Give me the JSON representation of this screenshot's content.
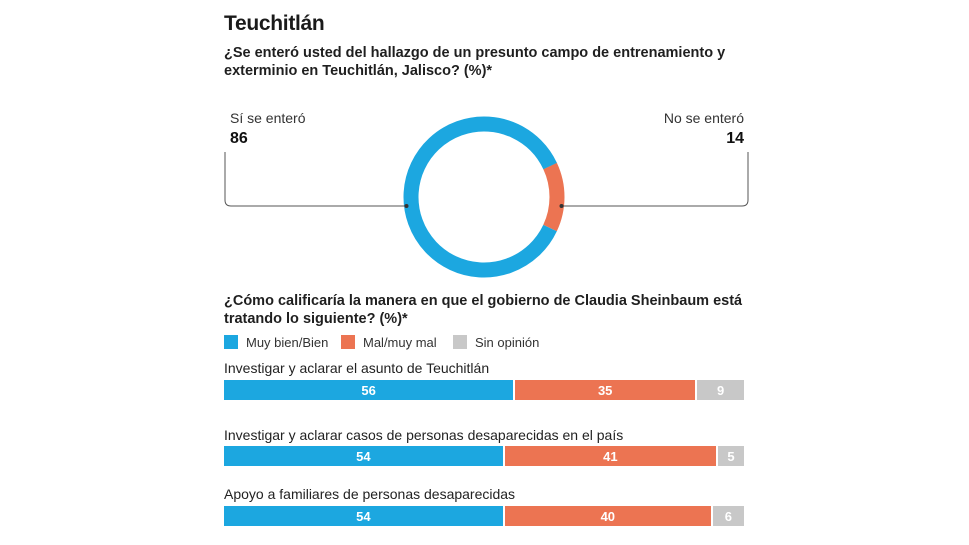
{
  "title": "Teuchitlán",
  "question1": "¿Se enteró usted del hallazgo de un presunto campo de entrenamiento y exterminio en Teuchitlán, Jalisco? (%)*",
  "question2": "¿Cómo calificaría la manera en que el gobierno de Claudia Sheinbaum está tratando lo siguiente? (%)*",
  "colors": {
    "blue": "#1ca7e0",
    "orange": "#ec7452",
    "gray": "#c8c8c8"
  },
  "chart_data": [
    {
      "type": "pie",
      "variant": "donut",
      "slices": [
        {
          "label": "Sí se enteró",
          "value": 86,
          "color": "#1ca7e0"
        },
        {
          "label": "No se enteró",
          "value": 14,
          "color": "#ec7452"
        }
      ]
    },
    {
      "type": "bar",
      "orientation": "horizontal",
      "stacked": true,
      "legend": "top-left",
      "categories": [
        "Investigar y aclarar el asunto de Teuchitlán",
        "Investigar y aclarar casos de personas desaparecidas en el país",
        "Apoyo a familiares de personas desaparecidas"
      ],
      "series": [
        {
          "name": "Muy bien/Bien",
          "values": [
            56,
            54,
            54
          ],
          "color": "#1ca7e0"
        },
        {
          "name": "Mal/muy mal",
          "values": [
            35,
            41,
            40
          ],
          "color": "#ec7452"
        },
        {
          "name": "Sin opinión",
          "values": [
            9,
            5,
            6
          ],
          "color": "#c8c8c8"
        }
      ]
    }
  ]
}
